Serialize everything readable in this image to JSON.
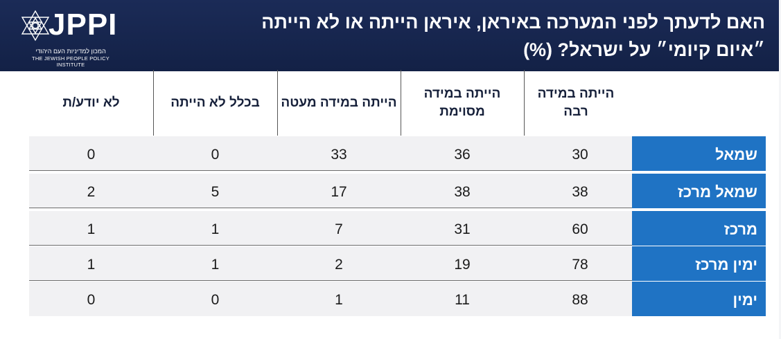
{
  "header": {
    "title": "האם לדעתך לפני המערכה באיראן, איראן הייתה או לא הייתה ״איום קיומי״ על ישראל? (%)",
    "logo_text": "JPPI",
    "logo_hebrew": "המכון למדיניות העם היהודי",
    "logo_english": "THE JEWISH PEOPLE POLICY INSTITUTE"
  },
  "colors": {
    "header_bg": "#1b2b57",
    "row_label_bg": "#1f73c4",
    "row_bg": "#f1f1f3"
  },
  "chart_data": {
    "type": "table",
    "title": "האם לדעתך לפני המערכה באיראן, איראן הייתה או לא הייתה ״איום קיומי״ על ישראל? (%)",
    "columns": [
      "הייתה במידה רבה",
      "הייתה במידה מסוימת",
      "הייתה במידה מעטה",
      "בכלל לא הייתה",
      "לא יודע/ת"
    ],
    "rows": [
      {
        "label": "שמאל",
        "values": [
          30,
          36,
          33,
          0,
          0
        ]
      },
      {
        "label": "שמאל מרכז",
        "values": [
          38,
          38,
          17,
          5,
          2
        ]
      },
      {
        "label": "מרכז",
        "values": [
          60,
          31,
          7,
          1,
          1
        ]
      },
      {
        "label": "ימין מרכז",
        "values": [
          78,
          19,
          2,
          1,
          1
        ]
      },
      {
        "label": "ימין",
        "values": [
          88,
          11,
          1,
          0,
          0
        ]
      }
    ]
  }
}
